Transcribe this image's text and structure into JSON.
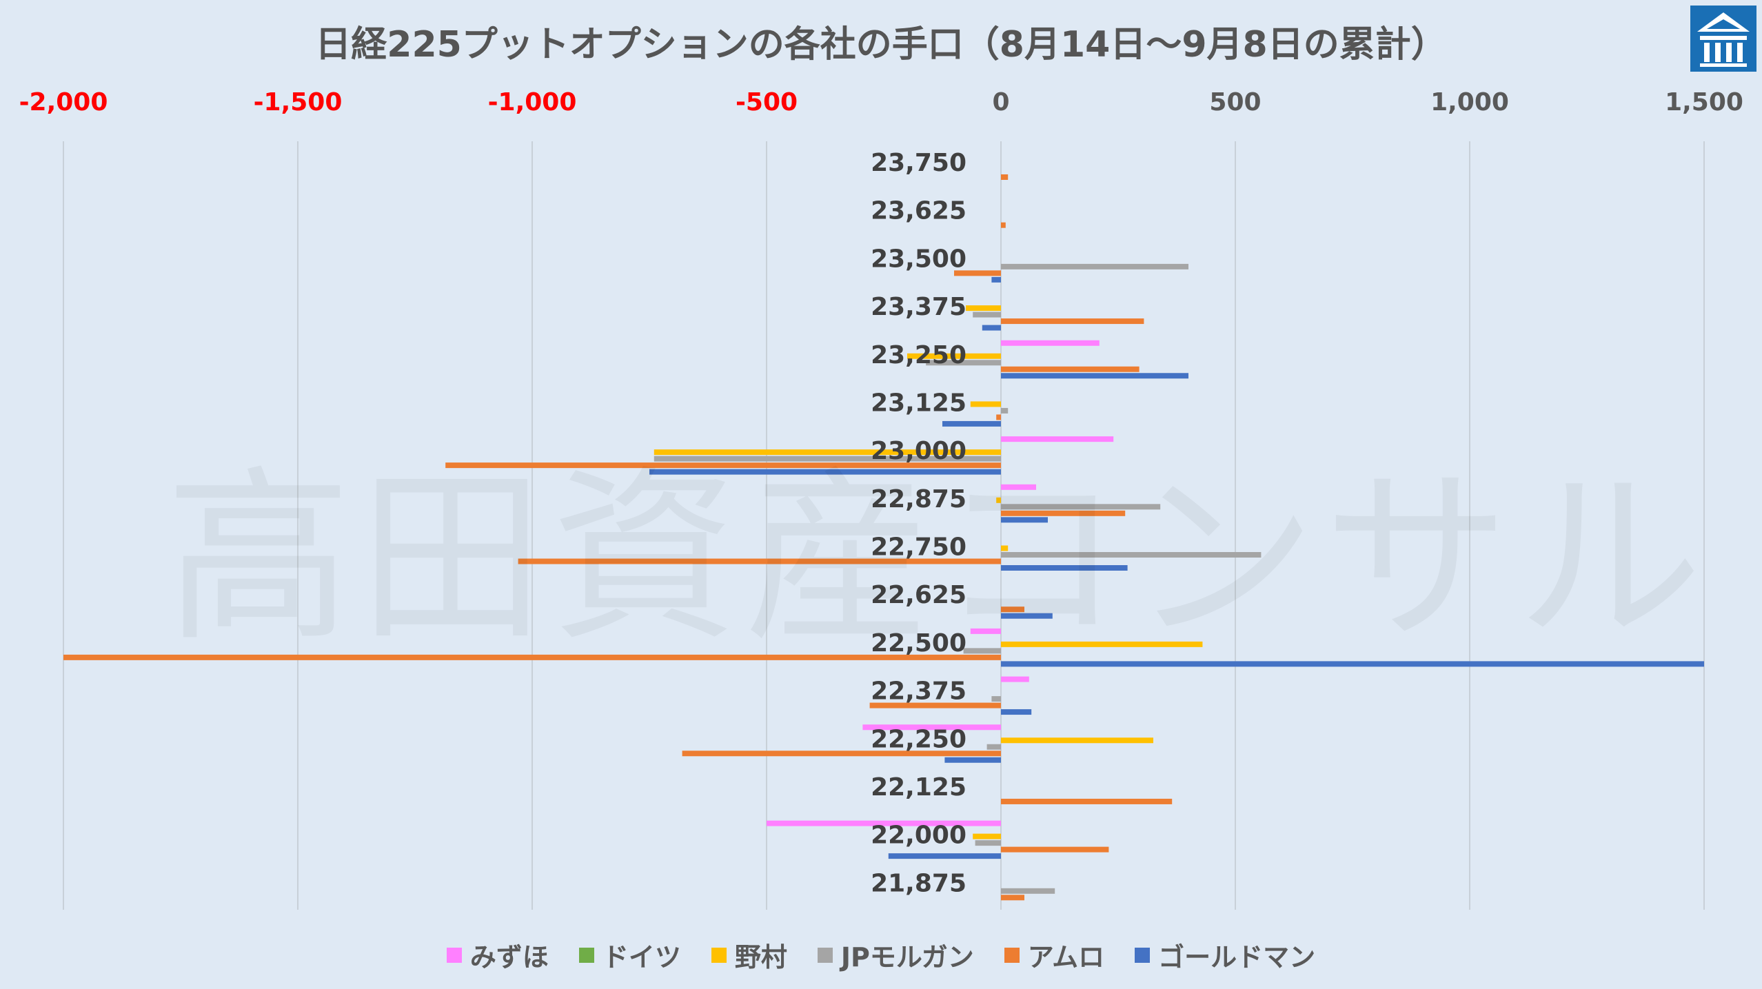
{
  "chart_data": {
    "type": "bar",
    "orientation": "horizontal",
    "title": "日経225プットオプションの各社の手口（8月14日～9月8日の累計）",
    "watermark": "高田資産コンサル",
    "xlim": [
      -2000,
      1500
    ],
    "x_ticks": [
      -2000,
      -1500,
      -1000,
      -500,
      0,
      500,
      1000,
      1500
    ],
    "x_tick_labels": [
      "-2,000",
      "-1,500",
      "-1,000",
      "-500",
      "0",
      "500",
      "1,000",
      "1,500"
    ],
    "negative_tick_color": "#ff0000",
    "positive_tick_color": "#595959",
    "grid": "vertical",
    "legend_position": "bottom",
    "categories": [
      "23,750",
      "23,625",
      "23,500",
      "23,375",
      "23,250",
      "23,125",
      "23,000",
      "22,875",
      "22,750",
      "22,625",
      "22,500",
      "22,375",
      "22,250",
      "22,125",
      "22,000",
      "21,875"
    ],
    "series": [
      {
        "name": "みずほ",
        "color": "#ff80ff",
        "values": [
          0,
          0,
          0,
          0,
          210,
          0,
          240,
          75,
          0,
          0,
          -65,
          60,
          -295,
          0,
          -500,
          0
        ]
      },
      {
        "name": "ドイツ",
        "color": "#70ad47",
        "values": [
          0,
          0,
          0,
          0,
          0,
          0,
          0,
          0,
          0,
          0,
          0,
          0,
          0,
          0,
          0,
          0
        ]
      },
      {
        "name": "野村",
        "color": "#ffc000",
        "values": [
          0,
          0,
          0,
          -75,
          -200,
          -65,
          -740,
          -10,
          15,
          0,
          430,
          0,
          325,
          0,
          -60,
          0
        ]
      },
      {
        "name": "JPモルガン",
        "color": "#a5a5a5",
        "values": [
          0,
          0,
          400,
          -60,
          -160,
          15,
          -740,
          340,
          555,
          0,
          -80,
          -20,
          -30,
          0,
          -55,
          115
        ]
      },
      {
        "name": "アムロ",
        "color": "#ed7d31",
        "values": [
          15,
          10,
          -100,
          305,
          295,
          -10,
          -1185,
          265,
          -1030,
          50,
          -2000,
          -280,
          -680,
          365,
          230,
          50
        ]
      },
      {
        "name": "ゴールドマン",
        "color": "#4472c4",
        "values": [
          0,
          0,
          -20,
          -40,
          400,
          -125,
          -750,
          100,
          270,
          110,
          1500,
          65,
          -120,
          0,
          -240,
          0
        ]
      }
    ]
  },
  "logo": {
    "name": "company-logo"
  }
}
